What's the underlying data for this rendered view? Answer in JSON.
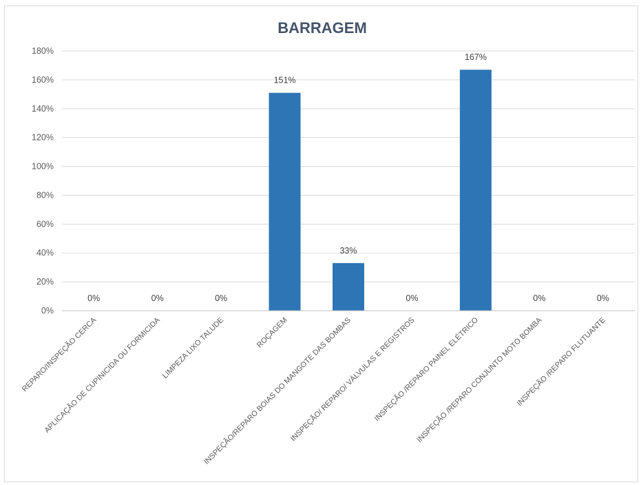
{
  "chart_data": {
    "type": "bar",
    "title": "BARRAGEM",
    "xlabel": "",
    "ylabel": "",
    "ylim": [
      0,
      180
    ],
    "yticks": [
      0,
      20,
      40,
      60,
      80,
      100,
      120,
      140,
      160,
      180
    ],
    "ytick_labels": [
      "0%",
      "20%",
      "40%",
      "60%",
      "80%",
      "100%",
      "120%",
      "140%",
      "160%",
      "180%"
    ],
    "grid": true,
    "legend": "none",
    "bar_color": "#2e75b6",
    "categories": [
      "REPARO/INSPEÇÃO CERCA",
      "APLICAÇÃO DE CUPINICIDA OU FORMICIDA",
      "LIMPEZA LIXO TALUDE",
      "ROÇAGEM",
      "INSPEÇÃO/REPARO BOIAS DO MANGOTE DAS BOMBAS",
      "INSPEÇÃO/ REPARO/  VÁLVULAS E REGISTROS",
      "INSPEÇÃO /REPARO PAINEL ELÉTRICO",
      "INSPEÇÃO /REPARO CONJUNTO MOTO BOMBA",
      "INSPEÇÃO /REPARO FLUTUANTE"
    ],
    "values": [
      0,
      0,
      0,
      151,
      33,
      0,
      167,
      0,
      0
    ],
    "data_labels": [
      "0%",
      "0%",
      "0%",
      "151%",
      "33%",
      "0%",
      "167%",
      "0%",
      "0%"
    ]
  }
}
